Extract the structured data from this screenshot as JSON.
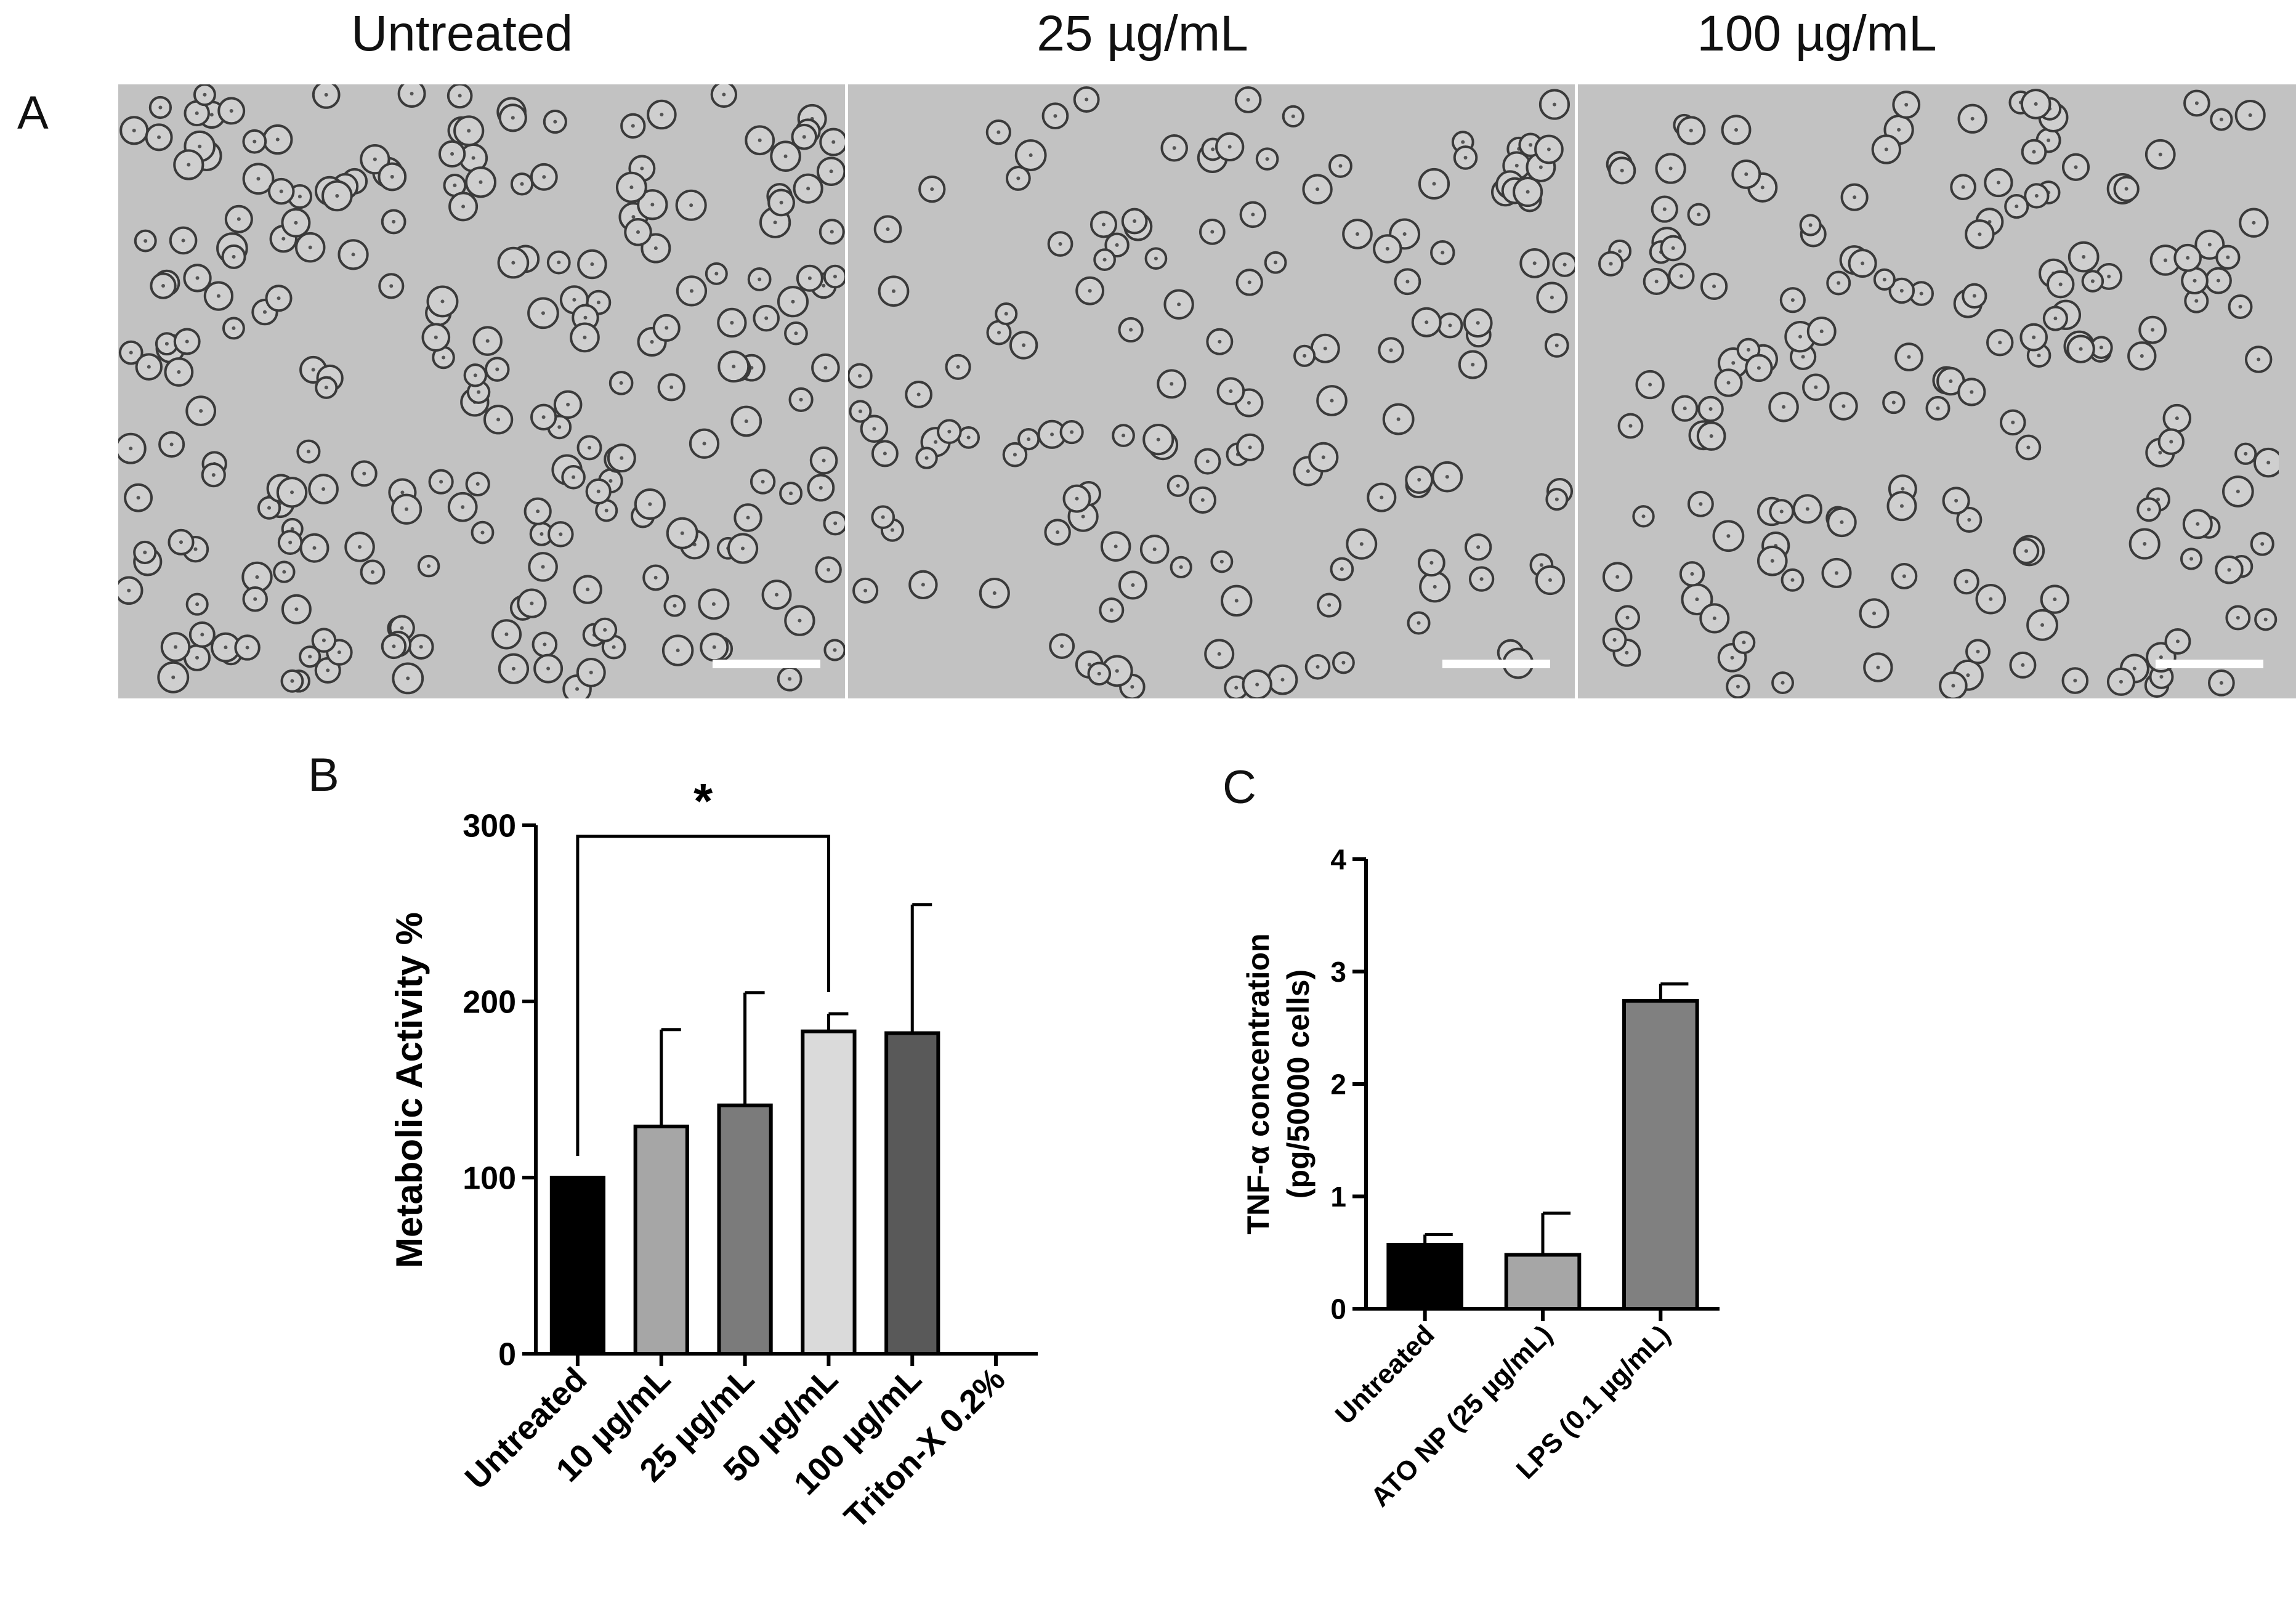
{
  "panel_labels": {
    "a": "A",
    "b": "B",
    "c": "C"
  },
  "micrographs": [
    {
      "title": "Untreated",
      "cell_count": 230
    },
    {
      "title": "25 µg/mL",
      "cell_count": 140
    },
    {
      "title": "100 µg/mL",
      "cell_count": 170
    }
  ],
  "colors": {
    "micro_background": "#c2c2c2",
    "cell_ring": "#3a3a3a",
    "scale_bar": "#ffffff"
  },
  "chart_data": [
    {
      "id": "B",
      "type": "bar",
      "ylabel": "Metabolic Activity %",
      "ylim": [
        0,
        300
      ],
      "yticks": [
        0,
        100,
        200,
        300
      ],
      "categories": [
        "Untreated",
        "10 µg/mL",
        "25  µg/mL",
        "50 µg/mL",
        "100  µg/mL",
        "Triton-X 0.2%"
      ],
      "values": [
        100,
        129,
        141,
        183,
        182,
        0
      ],
      "errors": [
        0,
        55,
        64,
        10,
        73,
        0
      ],
      "fills": [
        "#000000",
        "#a6a6a6",
        "#7b7b7b",
        "#dadada",
        "#595959",
        "#ffffff"
      ],
      "significance": {
        "from": 0,
        "to": 3,
        "label": "*"
      }
    },
    {
      "id": "C",
      "type": "bar",
      "ylabel_line1": "TNF-α concentration",
      "ylabel_line2": "(pg/50000 cells)",
      "ylim": [
        0,
        4
      ],
      "yticks": [
        0,
        1,
        2,
        3,
        4
      ],
      "categories": [
        "Untreated",
        "ATO NP (25 µg/mL)",
        "LPS (0.1 µg/mL)"
      ],
      "values": [
        0.57,
        0.48,
        2.74
      ],
      "errors": [
        0.09,
        0.37,
        0.15
      ],
      "fills": [
        "#000000",
        "#a6a6a6",
        "#808080"
      ]
    }
  ]
}
